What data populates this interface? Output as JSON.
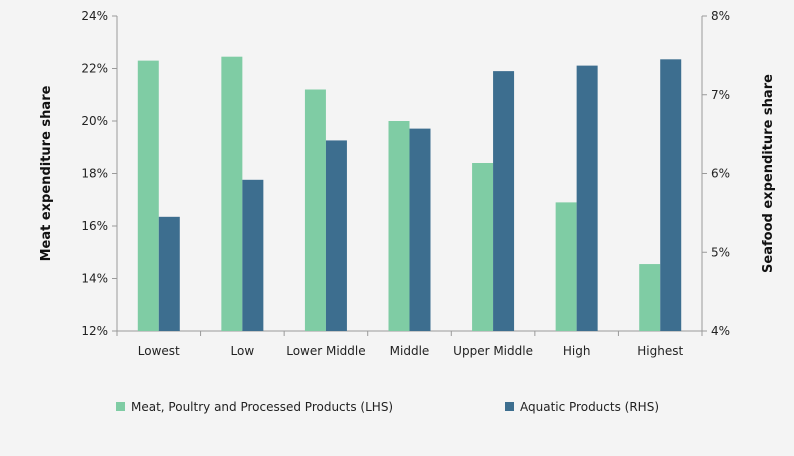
{
  "chart_data": {
    "type": "bar",
    "title": "",
    "categories": [
      "Lowest",
      "Low",
      "Lower Middle",
      "Middle",
      "Upper Middle",
      "High",
      "Highest"
    ],
    "series": [
      {
        "name": "Meat, Poultry and Processed Products (LHS)",
        "axis": "left",
        "color": "#7fcca4",
        "values": [
          22.3,
          22.45,
          21.2,
          20.0,
          18.4,
          16.9,
          14.55
        ]
      },
      {
        "name": "Aquatic Products (RHS)",
        "axis": "right",
        "color": "#3d6e8f",
        "values": [
          5.45,
          5.92,
          6.42,
          6.57,
          7.3,
          7.37,
          7.45
        ]
      }
    ],
    "y_left": {
      "label": "Meat expenditure share",
      "ylim": [
        12,
        24
      ],
      "ticks": [
        "12%",
        "14%",
        "16%",
        "18%",
        "20%",
        "22%",
        "24%"
      ]
    },
    "y_right": {
      "label": "Seafood expenditure share",
      "ylim": [
        4,
        8
      ],
      "ticks": [
        "4%",
        "5%",
        "6%",
        "7%",
        "8%"
      ]
    },
    "grid": false,
    "legend_position": "bottom"
  }
}
